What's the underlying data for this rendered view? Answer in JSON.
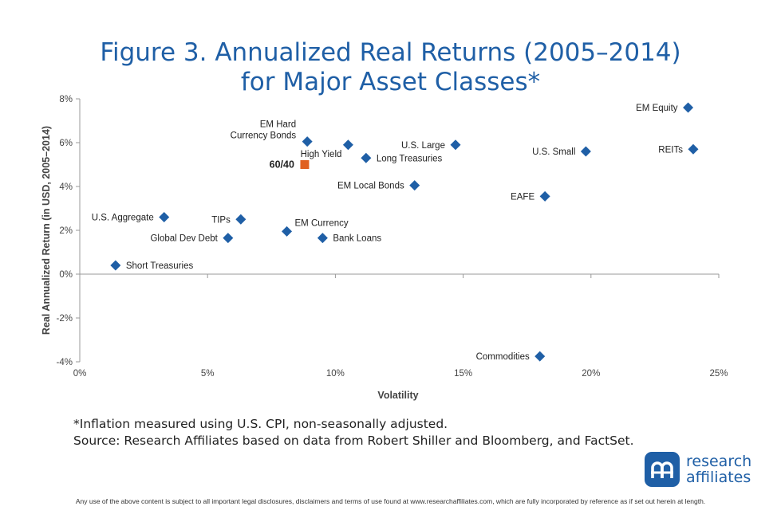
{
  "title_line1": "Figure 3. Annualized Real Returns (2005–2014)",
  "title_line2": "for Major Asset Classes*",
  "footnote_line1": "*Inflation measured using U.S. CPI, non-seasonally adjusted.",
  "footnote_line2": "Source: Research Affiliates based on data from Robert Shiller and Bloomberg, and FactSet.",
  "logo": {
    "line1": "research",
    "line2": "affiliates",
    "icon": "research-affiliates-logo-icon"
  },
  "disclaimer": "Any use of the above content is subject to all important legal disclosures, disclaimers and terms of use found at www.researchaffiliates.com, which are fully incorporated by reference as if set out herein at length.",
  "colors": {
    "title": "#1f5fa6",
    "marker": "#1f5fa6",
    "highlight": "#e06020"
  },
  "chart_data": {
    "type": "scatter",
    "title": "Figure 3. Annualized Real Returns (2005–2014) for Major Asset Classes*",
    "xlabel": "Volatility",
    "ylabel": "Real Annualized Return (in USD, 2005–2014)",
    "xlim": [
      0,
      25
    ],
    "ylim": [
      -4,
      8
    ],
    "xticks": [
      0,
      5,
      10,
      15,
      20,
      25
    ],
    "xtick_labels": [
      "0%",
      "5%",
      "10%",
      "15%",
      "20%",
      "25%"
    ],
    "yticks": [
      8,
      6,
      4,
      2,
      0,
      -2,
      -4
    ],
    "ytick_labels": [
      "8%",
      "6%",
      "4%",
      "2%",
      "0%",
      "-2%",
      "-4%"
    ],
    "grid": false,
    "legend": "none",
    "points": [
      {
        "label": "Short Treasuries",
        "x": 1.4,
        "y": 0.4,
        "anchor": "right"
      },
      {
        "label": "U.S. Aggregate",
        "x": 3.3,
        "y": 2.6,
        "anchor": "left"
      },
      {
        "label": "Global Dev Debt",
        "x": 5.8,
        "y": 1.65,
        "anchor": "left"
      },
      {
        "label": "TIPs",
        "x": 6.3,
        "y": 2.5,
        "anchor": "left"
      },
      {
        "label": "EM Currency",
        "x": 8.1,
        "y": 1.95,
        "anchor": "right-above"
      },
      {
        "label": "EM Hard Currency Bonds",
        "lines": [
          "EM Hard",
          "Currency Bonds"
        ],
        "x": 8.9,
        "y": 6.05,
        "anchor": "left-above"
      },
      {
        "label": "60/40",
        "x": 8.8,
        "y": 5.0,
        "anchor": "left",
        "highlight": true
      },
      {
        "label": "Bank Loans",
        "x": 9.5,
        "y": 1.65,
        "anchor": "right"
      },
      {
        "label": "High Yield",
        "x": 10.5,
        "y": 5.9,
        "anchor": "left-below"
      },
      {
        "label": "Long Treasuries",
        "x": 11.2,
        "y": 5.3,
        "anchor": "right"
      },
      {
        "label": "EM Local Bonds",
        "x": 13.1,
        "y": 4.05,
        "anchor": "left"
      },
      {
        "label": "U.S. Large",
        "x": 14.7,
        "y": 5.9,
        "anchor": "left"
      },
      {
        "label": "Commodities",
        "x": 18.0,
        "y": -3.75,
        "anchor": "left"
      },
      {
        "label": "EAFE",
        "x": 18.2,
        "y": 3.55,
        "anchor": "left"
      },
      {
        "label": "U.S. Small",
        "x": 19.8,
        "y": 5.6,
        "anchor": "left"
      },
      {
        "label": "EM Equity",
        "x": 23.8,
        "y": 7.6,
        "anchor": "left"
      },
      {
        "label": "REITs",
        "x": 24.0,
        "y": 5.7,
        "anchor": "left"
      }
    ]
  }
}
